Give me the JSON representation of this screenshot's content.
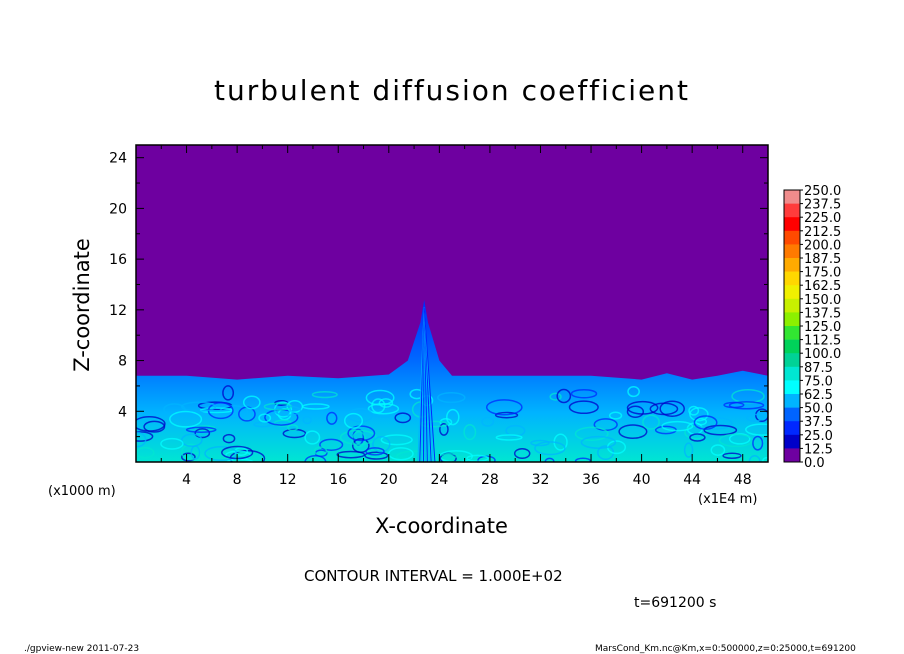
{
  "chart_data": {
    "type": "heatmap",
    "title": "turbulent diffusion coefficient",
    "xlabel": "X-coordinate",
    "ylabel": "Z-coordinate",
    "x_unit_left": "(x1000 m)",
    "x_unit_right": "(x1E4 m)",
    "xlim": [
      0,
      50
    ],
    "ylim": [
      0,
      25
    ],
    "xticks": [
      4,
      8,
      12,
      16,
      20,
      24,
      28,
      32,
      36,
      40,
      44,
      48
    ],
    "yticks": [
      4,
      8,
      12,
      16,
      20,
      24
    ],
    "colorbar": {
      "levels": [
        "250.0",
        "237.5",
        "225.0",
        "212.5",
        "200.0",
        "187.5",
        "175.0",
        "162.5",
        "150.0",
        "137.5",
        "125.0",
        "112.5",
        "100.0",
        "87.5",
        "75.0",
        "62.5",
        "50.0",
        "37.5",
        "25.0",
        "12.5",
        "0.0"
      ],
      "colors": [
        "#f08c8c",
        "#ff3c3c",
        "#ff0000",
        "#ff4a00",
        "#ff7a00",
        "#ffaa00",
        "#ffd700",
        "#f0f000",
        "#c8f000",
        "#8cf000",
        "#32e632",
        "#00d25a",
        "#00d296",
        "#00e6d2",
        "#00ffff",
        "#00b4ff",
        "#0064ff",
        "#0028ff",
        "#0000c8",
        "#6e00a0"
      ]
    },
    "boundary_layer_top": [
      [
        0,
        6.8
      ],
      [
        4,
        6.8
      ],
      [
        8,
        6.5
      ],
      [
        12,
        6.8
      ],
      [
        16,
        6.6
      ],
      [
        20,
        6.9
      ],
      [
        21.5,
        8
      ],
      [
        22.5,
        11
      ],
      [
        22.8,
        12.8
      ],
      [
        23.1,
        11
      ],
      [
        24,
        8
      ],
      [
        25,
        6.8
      ],
      [
        28,
        6.8
      ],
      [
        32,
        6.8
      ],
      [
        36,
        6.8
      ],
      [
        40,
        6.5
      ],
      [
        42,
        7.0
      ],
      [
        44,
        6.5
      ],
      [
        46,
        6.8
      ],
      [
        48,
        7.2
      ],
      [
        50,
        6.8
      ]
    ],
    "background_value": 0.0
  },
  "contour_interval": "CONTOUR INTERVAL = 1.000E+02",
  "time_label": "t=691200 s",
  "footer_left": "./gpview-new   2011-07-23",
  "footer_right": "MarsCond_Km.nc@Km,x=0:500000,z=0:25000,t=691200"
}
